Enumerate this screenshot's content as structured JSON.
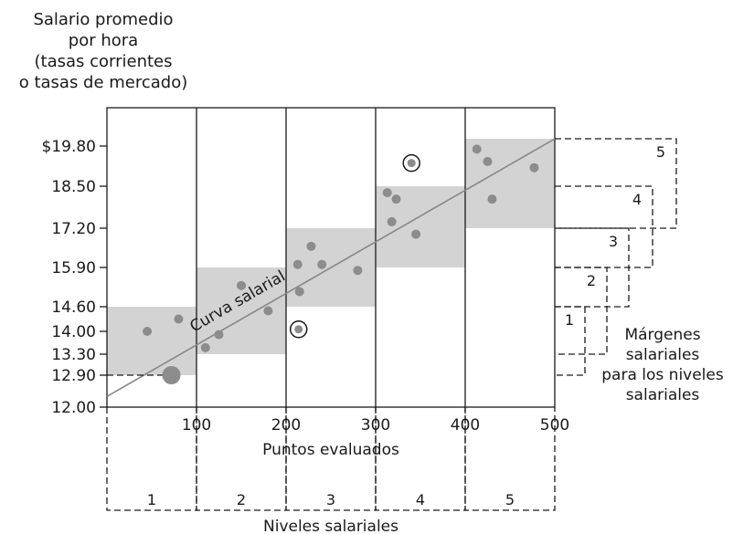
{
  "chart_data": {
    "type": "scatter",
    "ylabel_lines": [
      "Salario promedio",
      "por hora",
      "(tasas corrientes",
      "o tasas de mercado)"
    ],
    "xlabel": "Puntos evaluados",
    "bottom_label": "Niveles salariales",
    "range_label_lines": [
      "Márgenes",
      "salariales",
      "para los niveles",
      "salariales"
    ],
    "curve_label": "Curva salarial",
    "xlim": [
      0,
      500
    ],
    "ylim": [
      12.0,
      20.8
    ],
    "x_ticks": [
      {
        "value": 100,
        "label": "100"
      },
      {
        "value": 200,
        "label": "200"
      },
      {
        "value": 300,
        "label": "300"
      },
      {
        "value": 400,
        "label": "400"
      },
      {
        "value": 500,
        "label": "500"
      }
    ],
    "y_ticks": [
      {
        "value": 19.8,
        "label": "$19.80"
      },
      {
        "value": 18.5,
        "label": "18.50"
      },
      {
        "value": 17.2,
        "label": "17.20"
      },
      {
        "value": 15.9,
        "label": "15.90"
      },
      {
        "value": 14.6,
        "label": "14.60"
      },
      {
        "value": 14.0,
        "label": "14.00"
      },
      {
        "value": 13.3,
        "label": "13.30"
      },
      {
        "value": 12.9,
        "label": "12.90"
      },
      {
        "value": 12.0,
        "label": "12.00"
      }
    ],
    "grades": [
      {
        "label": "1",
        "x0": 0,
        "x1": 100,
        "min": 12.9,
        "max": 14.6
      },
      {
        "label": "2",
        "x0": 100,
        "x1": 200,
        "min": 13.3,
        "max": 15.9
      },
      {
        "label": "3",
        "x0": 200,
        "x1": 300,
        "min": 14.6,
        "max": 17.2
      },
      {
        "label": "4",
        "x0": 300,
        "x1": 400,
        "min": 15.9,
        "max": 18.5
      },
      {
        "label": "5",
        "x0": 400,
        "x1": 500,
        "min": 17.2,
        "max": 19.99
      }
    ],
    "wage_curve": [
      [
        0,
        12.3
      ],
      [
        500,
        19.99
      ]
    ],
    "points": [
      [
        45,
        14.0
      ],
      [
        80,
        14.3
      ],
      [
        110,
        13.5
      ],
      [
        125,
        13.9
      ],
      [
        150,
        15.3
      ],
      [
        180,
        14.5
      ],
      [
        215,
        15.1
      ],
      [
        213,
        16.0
      ],
      [
        228,
        16.6
      ],
      [
        240,
        16.0
      ],
      [
        280,
        15.8
      ],
      [
        313,
        18.3
      ],
      [
        318,
        17.4
      ],
      [
        323,
        18.1
      ],
      [
        345,
        17.0
      ],
      [
        413,
        19.7
      ],
      [
        425,
        19.3
      ],
      [
        430,
        18.1
      ],
      [
        477,
        19.1
      ]
    ],
    "highlight_points": [
      [
        72,
        12.9
      ]
    ],
    "circled_points": [
      [
        214,
        14.05
      ],
      [
        340,
        19.25
      ]
    ]
  },
  "colors": {
    "band": "#d3d3d3",
    "point": "#8c8c8c",
    "curve": "#888888",
    "axis": "#1a1a1a"
  }
}
